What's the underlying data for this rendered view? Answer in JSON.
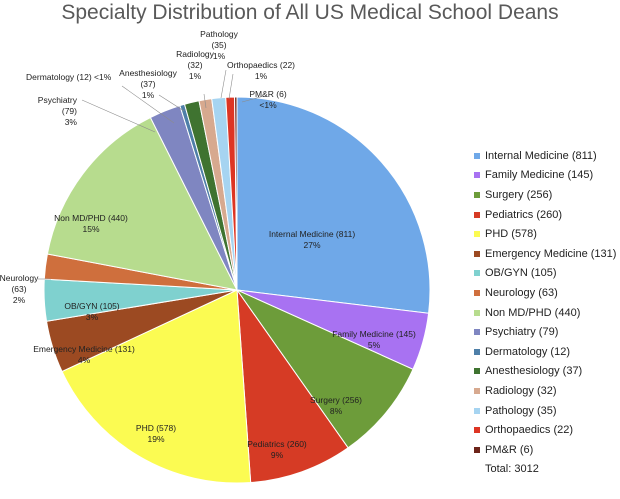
{
  "chart_data": {
    "type": "pie",
    "title": "Specialty Distribution of All US Medical School Deans",
    "total_label": "Total: 3012",
    "slices": [
      {
        "legend": "Internal Medicine (811)",
        "value": 811,
        "color": "#6fa8e8",
        "label": [
          "Internal Medicine (811)",
          "27%"
        ]
      },
      {
        "legend": "Family Medicine (145)",
        "value": 145,
        "color": "#a872f2",
        "label": [
          "Family Medicine (145)",
          "5%"
        ]
      },
      {
        "legend": "Surgery (256)",
        "value": 256,
        "color": "#6d9c3a",
        "label": [
          "Surgery (256)",
          "8%"
        ]
      },
      {
        "legend": "Pediatrics (260)",
        "value": 260,
        "color": "#d63b25",
        "label": [
          "Pediatrics (260)",
          "9%"
        ]
      },
      {
        "legend": "PHD (578)",
        "value": 578,
        "color": "#fbfb52",
        "label": [
          "PHD (578)",
          "19%"
        ]
      },
      {
        "legend": "Emergency Medicine (131)",
        "value": 131,
        "color": "#9c4a22",
        "label": [
          "Emergency Medicine (131)",
          "4%"
        ]
      },
      {
        "legend": "OB/GYN (105)",
        "value": 105,
        "color": "#7fd1cf",
        "label": [
          "OB/GYN (105)",
          "3%"
        ]
      },
      {
        "legend": "Neurology (63)",
        "value": 63,
        "color": "#cf6f3d",
        "label": [
          "Neurology",
          "(63)",
          "2%"
        ]
      },
      {
        "legend": "Non MD/PHD (440)",
        "value": 440,
        "color": "#b7dc8e",
        "label": [
          "Non MD/PHD (440)",
          "15%"
        ]
      },
      {
        "legend": "Psychiatry (79)",
        "value": 79,
        "color": "#7f86c1",
        "label": [
          "Psychiatry",
          "(79)",
          "3%"
        ]
      },
      {
        "legend": "Dermatology (12)",
        "value": 12,
        "color": "#4e7fa8",
        "label": [
          "Dermatology (12) <1%"
        ]
      },
      {
        "legend": "Anesthesiology (37)",
        "value": 37,
        "color": "#3f7330",
        "label": [
          "Anesthesiology",
          "(37)",
          "1%"
        ]
      },
      {
        "legend": "Radiology (32)",
        "value": 32,
        "color": "#d7a98f",
        "label": [
          "Radiology",
          "(32)",
          "1%"
        ]
      },
      {
        "legend": "Pathology (35)",
        "value": 35,
        "color": "#a6d4f1",
        "label": [
          "Pathology",
          "(35)",
          "1%"
        ]
      },
      {
        "legend": "Orthopaedics (22)",
        "value": 22,
        "color": "#dd3524",
        "label": [
          "Orthopaedics (22)",
          "1%"
        ]
      },
      {
        "legend": "PM&R (6)",
        "value": 6,
        "color": "#6d2419",
        "label": [
          "PM&R (6)",
          "<1%"
        ]
      }
    ]
  }
}
